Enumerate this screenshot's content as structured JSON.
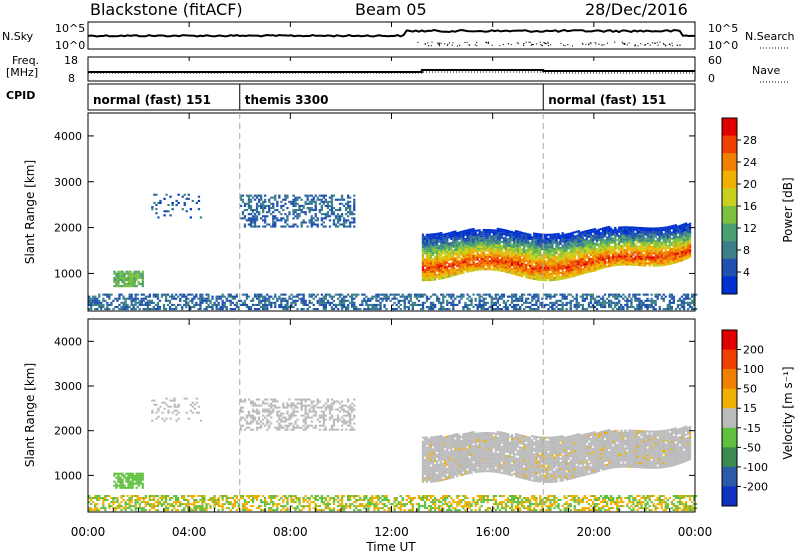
{
  "header": {
    "station": "Blackstone (fitACF)",
    "beam": "Beam 05",
    "date": "28/Dec/2016"
  },
  "top_panels": {
    "nsky_label": "N.Sky",
    "nsky_tick_top": "10^5",
    "nsky_tick_bottom": "10^0",
    "nsearch_label": "N.Search",
    "nsearch_tick_top": "10^5",
    "nsearch_tick_bottom": "10^0",
    "freq_label": "Freq.",
    "freq_unit": "[MHz]",
    "freq_tick_top": "18",
    "freq_tick_bottom": "8",
    "nave_label": "Nave",
    "nave_tick_top": "60",
    "nave_tick_bottom": "0",
    "cpid_label": "CPID",
    "cpid_segments": [
      {
        "label": "normal (fast) 151",
        "start_hour": 0,
        "end_hour": 6
      },
      {
        "label": "themis 3300",
        "start_hour": 6,
        "end_hour": 18
      },
      {
        "label": "normal (fast) 151",
        "start_hour": 18,
        "end_hour": 24
      }
    ]
  },
  "colorbars": {
    "power": {
      "label": "Power [dB]",
      "ticks": [
        "28",
        "24",
        "20",
        "16",
        "12",
        "8",
        "4"
      ],
      "colors": [
        "#0030d0",
        "#2050b0",
        "#3a7f8a",
        "#4aa070",
        "#7cc040",
        "#c8d020",
        "#f0b000",
        "#f08000",
        "#f04000",
        "#e00000"
      ]
    },
    "velocity": {
      "label": "Velocity [m s⁻¹]",
      "ticks": [
        "200",
        "100",
        "50",
        "15",
        "-15",
        "-50",
        "-100",
        "-200"
      ],
      "colors": [
        "#1030c0",
        "#2a5aa8",
        "#3c8a50",
        "#60c040",
        "#bbbbbb",
        "#f0b000",
        "#f08000",
        "#f04000",
        "#e00000"
      ]
    }
  },
  "x_axis": {
    "title": "Time UT",
    "tick_labels": [
      "00:00",
      "04:00",
      "08:00",
      "12:00",
      "16:00",
      "20:00",
      "00:00"
    ]
  },
  "chart_data": [
    {
      "type": "heatmap",
      "title": "",
      "xlabel": "Time UT",
      "ylabel": "Slant Range [km]",
      "xlim_hours": [
        0,
        24
      ],
      "ylim": [
        180,
        4500
      ],
      "yticks": [
        1000,
        2000,
        3000,
        4000
      ],
      "colorbar": "Power [dB]",
      "color_range": [
        0,
        30
      ],
      "scatter_regions": [
        {
          "t0": 0.0,
          "t1": 24.0,
          "r0": 200,
          "r1": 550,
          "value": 6,
          "density": 0.55,
          "name": "near-range clutter"
        },
        {
          "t0": 13.2,
          "t1": 23.8,
          "r0": 900,
          "r1": 2100,
          "value": 20,
          "density": 0.95,
          "name": "main echo band"
        },
        {
          "t0": 1.0,
          "t1": 2.2,
          "r0": 700,
          "r1": 1050,
          "value": 12,
          "density": 0.8,
          "name": "early patch"
        },
        {
          "t0": 6.0,
          "t1": 10.5,
          "r0": 2000,
          "r1": 2700,
          "value": 6,
          "density": 0.45,
          "name": "diffuse scatter"
        },
        {
          "t0": 2.5,
          "t1": 4.5,
          "r0": 2200,
          "r1": 2700,
          "value": 5,
          "density": 0.15,
          "name": "sparse scatter"
        }
      ]
    },
    {
      "type": "heatmap",
      "title": "",
      "xlabel": "Time UT",
      "ylabel": "Slant Range [km]",
      "xlim_hours": [
        0,
        24
      ],
      "ylim": [
        180,
        4500
      ],
      "yticks": [
        1000,
        2000,
        3000,
        4000
      ],
      "colorbar": "Velocity [m s⁻¹]",
      "color_range": [
        -200,
        200
      ],
      "scatter_regions": [
        {
          "t0": 0.0,
          "t1": 24.0,
          "r0": 200,
          "r1": 550,
          "value": 30,
          "density": 0.55,
          "name": "near-range clutter"
        },
        {
          "t0": 13.2,
          "t1": 23.8,
          "r0": 900,
          "r1": 2100,
          "value": 0,
          "density": 0.95,
          "name": "main echo band"
        },
        {
          "t0": 1.0,
          "t1": 2.2,
          "r0": 700,
          "r1": 1050,
          "value": -40,
          "density": 0.8,
          "name": "early patch"
        },
        {
          "t0": 6.0,
          "t1": 10.5,
          "r0": 2000,
          "r1": 2700,
          "value": 0,
          "density": 0.45,
          "name": "diffuse scatter"
        },
        {
          "t0": 2.5,
          "t1": 4.5,
          "r0": 2200,
          "r1": 2700,
          "value": 0,
          "density": 0.15,
          "name": "sparse scatter"
        }
      ]
    }
  ]
}
